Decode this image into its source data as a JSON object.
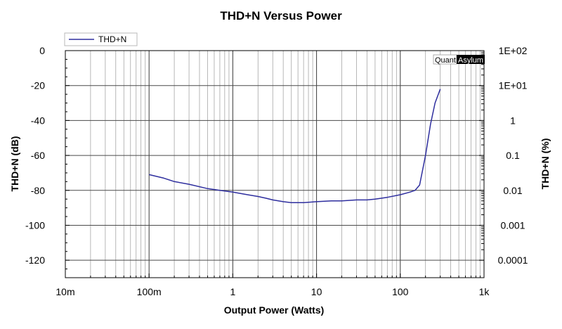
{
  "chart_data": {
    "type": "line",
    "title": "THD+N Versus Power",
    "xlabel": "Output Power (Watts)",
    "ylabel": "THD+N (dB)",
    "y2label": "THD+N (%)",
    "x_scale": "log",
    "xlim": [
      0.01,
      1000
    ],
    "ylim": [
      -130,
      0
    ],
    "y2_scale": "log",
    "grid": true,
    "legend_position": "top-left",
    "x_ticks": [
      {
        "value": 0.01,
        "label": "10m"
      },
      {
        "value": 0.1,
        "label": "100m"
      },
      {
        "value": 1,
        "label": "1"
      },
      {
        "value": 10,
        "label": "10"
      },
      {
        "value": 100,
        "label": "100"
      },
      {
        "value": 1000,
        "label": "1k"
      }
    ],
    "y_ticks": [
      {
        "value": 0,
        "label": "0"
      },
      {
        "value": -20,
        "label": "-20"
      },
      {
        "value": -40,
        "label": "-40"
      },
      {
        "value": -60,
        "label": "-60"
      },
      {
        "value": -80,
        "label": "-80"
      },
      {
        "value": -100,
        "label": "-100"
      },
      {
        "value": -120,
        "label": "-120"
      }
    ],
    "y2_ticks": [
      {
        "value": 100,
        "label": "1E+02"
      },
      {
        "value": 10,
        "label": "1E+01"
      },
      {
        "value": 1,
        "label": "1"
      },
      {
        "value": 0.1,
        "label": "0.1"
      },
      {
        "value": 0.01,
        "label": "0.01"
      },
      {
        "value": 0.001,
        "label": "0.001"
      },
      {
        "value": 0.0001,
        "label": "0.0001"
      }
    ],
    "series": [
      {
        "name": "THD+N",
        "color": "#2e2e9e",
        "x": [
          0.1,
          0.15,
          0.2,
          0.3,
          0.5,
          0.7,
          1,
          1.5,
          2,
          2.5,
          3,
          4,
          5,
          7,
          10,
          15,
          20,
          30,
          40,
          50,
          70,
          100,
          130,
          150,
          170,
          200,
          230,
          260,
          300
        ],
        "y": [
          -71,
          -73,
          -75,
          -76.5,
          -79,
          -80,
          -81,
          -82.5,
          -83.5,
          -84.5,
          -85.5,
          -86.5,
          -87,
          -87,
          -86.5,
          -86,
          -86,
          -85.5,
          -85.5,
          -85,
          -84,
          -82.5,
          -81,
          -80,
          -77,
          -60,
          -42,
          -30,
          -22
        ]
      }
    ]
  },
  "watermark": {
    "part1": "Quant",
    "part2": "Asylum"
  }
}
